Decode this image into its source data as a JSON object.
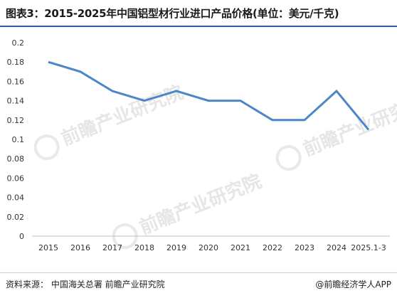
{
  "header": {
    "title": "图表3：2015-2025年中国铝型材行业进口产品价格(单位：美元/千克)"
  },
  "footer": {
    "source": "资料来源： 中国海关总署 前瞻产业研究院",
    "credit": "@前瞻经济学人APP"
  },
  "watermark": {
    "text": "前瞻产业研究院"
  },
  "colors": {
    "line": "#4a86c8",
    "title_rule": "#2b5ea7",
    "axis": "#bfbfbf"
  },
  "chart_data": {
    "type": "line",
    "categories": [
      "2015",
      "2016",
      "2017",
      "2018",
      "2019",
      "2020",
      "2021",
      "2022",
      "2023",
      "2024",
      "2025.1-3"
    ],
    "series": [
      {
        "values": [
          0.18,
          0.17,
          0.15,
          0.14,
          0.15,
          0.14,
          0.14,
          0.12,
          0.12,
          0.15,
          0.11
        ]
      }
    ],
    "ylim": [
      0,
      0.2
    ],
    "yticks": [
      "0",
      "0.02",
      "0.04",
      "0.06",
      "0.08",
      "0.1",
      "0.12",
      "0.14",
      "0.16",
      "0.18",
      "0.2"
    ],
    "grid": false,
    "legend": "none"
  }
}
